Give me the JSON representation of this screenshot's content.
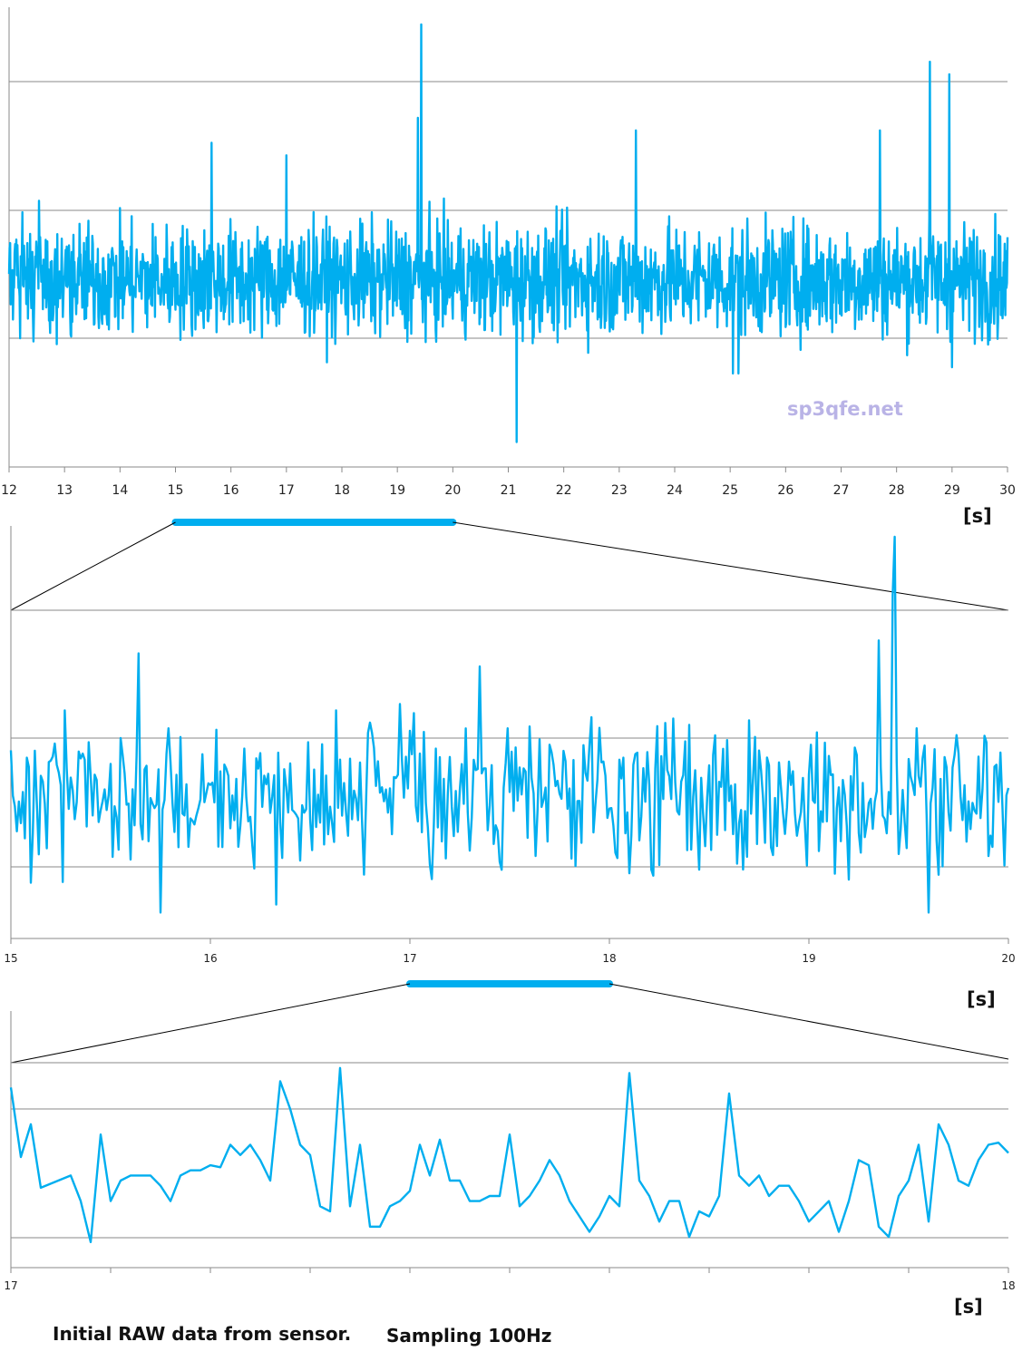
{
  "colors": {
    "series": "#00aeef",
    "grid": "#8a8a8a",
    "axis": "#8a8a8a",
    "connector": "#000000"
  },
  "watermark": "sp3qfe.net",
  "caption": {
    "left": "Initial RAW data from sensor.",
    "right": "Sampling 100Hz"
  },
  "chart_data": [
    {
      "type": "line",
      "xlabel": "[s]",
      "xlim": [
        12,
        30
      ],
      "ticks": [
        "12",
        "13",
        "14",
        "15",
        "16",
        "17",
        "18",
        "19",
        "20",
        "21",
        "22",
        "23",
        "24",
        "25",
        "26",
        "27",
        "28",
        "29",
        "30"
      ],
      "ylim": [
        -2,
        1.6
      ],
      "grid": true,
      "zoom_highlight": [
        15,
        20
      ],
      "sampling_hz": 100,
      "points_note": "dense noise trace, ~mean -0.5, range approx -1.8 to 1.55",
      "spikes": [
        [
          19.43,
          1.55
        ],
        [
          19.37,
          0.8
        ],
        [
          15.65,
          0.6
        ],
        [
          21.15,
          -1.8
        ],
        [
          25.15,
          -1.25
        ],
        [
          28.6,
          1.25
        ],
        [
          28.95,
          1.15
        ],
        [
          29.0,
          -1.2
        ],
        [
          27.7,
          0.7
        ],
        [
          23.3,
          0.7
        ],
        [
          17.0,
          0.5
        ],
        [
          25.05,
          -1.25
        ]
      ]
    },
    {
      "type": "line",
      "xlabel": "[s]",
      "xlim": [
        15,
        20
      ],
      "ticks": [
        "15",
        "16",
        "17",
        "18",
        "19",
        "20"
      ],
      "ylim": [
        -1.55,
        1.55
      ],
      "grid": true,
      "zoom_highlight": [
        17,
        18
      ],
      "spikes": [
        [
          19.43,
          1.55
        ],
        [
          19.42,
          1.1
        ],
        [
          19.35,
          0.75
        ],
        [
          15.64,
          0.65
        ],
        [
          15.75,
          -1.35
        ],
        [
          17.35,
          0.55
        ],
        [
          19.6,
          -1.35
        ]
      ]
    },
    {
      "type": "line",
      "xlabel": "[s]",
      "xlim": [
        17,
        18
      ],
      "ticks": [
        "17",
        "18"
      ],
      "minor_ticks": 10,
      "ylim": [
        -1.2,
        1.2
      ],
      "grid": true,
      "x": [
        17.0,
        17.01,
        17.02,
        17.03,
        17.04,
        17.05,
        17.06,
        17.07,
        17.08,
        17.09,
        17.1,
        17.11,
        17.12,
        17.13,
        17.14,
        17.15,
        17.16,
        17.17,
        17.18,
        17.19,
        17.2,
        17.21,
        17.22,
        17.23,
        17.24,
        17.25,
        17.26,
        17.27,
        17.28,
        17.29,
        17.3,
        17.31,
        17.32,
        17.33,
        17.34,
        17.35,
        17.36,
        17.37,
        17.38,
        17.39,
        17.4,
        17.41,
        17.42,
        17.43,
        17.44,
        17.45,
        17.46,
        17.47,
        17.48,
        17.49,
        17.5,
        17.51,
        17.52,
        17.53,
        17.54,
        17.55,
        17.56,
        17.57,
        17.58,
        17.59,
        17.6,
        17.61,
        17.62,
        17.63,
        17.64,
        17.65,
        17.66,
        17.67,
        17.68,
        17.69,
        17.7,
        17.71,
        17.72,
        17.73,
        17.74,
        17.75,
        17.76,
        17.77,
        17.78,
        17.79,
        17.8,
        17.81,
        17.82,
        17.83,
        17.84,
        17.85,
        17.86,
        17.87,
        17.88,
        17.89,
        17.9,
        17.91,
        17.92,
        17.93,
        17.94,
        17.95,
        17.96,
        17.97,
        17.98,
        17.99,
        18.0
      ],
      "y": [
        0.56,
        -0.12,
        0.2,
        -0.42,
        -0.38,
        -0.34,
        -0.3,
        -0.55,
        -0.95,
        0.1,
        -0.55,
        -0.35,
        -0.3,
        -0.3,
        -0.3,
        -0.4,
        -0.55,
        -0.3,
        -0.25,
        -0.25,
        -0.2,
        -0.22,
        0.0,
        -0.1,
        0.0,
        -0.15,
        -0.35,
        0.62,
        0.35,
        0.0,
        -0.1,
        -0.6,
        -0.65,
        0.75,
        -0.6,
        0.0,
        -0.8,
        -0.8,
        -0.6,
        -0.55,
        -0.45,
        0.0,
        -0.3,
        0.05,
        -0.35,
        -0.35,
        -0.55,
        -0.55,
        -0.5,
        -0.5,
        0.1,
        -0.6,
        -0.5,
        -0.35,
        -0.15,
        -0.3,
        -0.55,
        -0.7,
        -0.85,
        -0.7,
        -0.5,
        -0.6,
        0.7,
        -0.35,
        -0.5,
        -0.75,
        -0.55,
        -0.55,
        -0.9,
        -0.65,
        -0.7,
        -0.5,
        0.5,
        -0.3,
        -0.4,
        -0.3,
        -0.5,
        -0.4,
        -0.4,
        -0.55,
        -0.75,
        -0.65,
        -0.55,
        -0.85,
        -0.55,
        -0.15,
        -0.2,
        -0.8,
        -0.9,
        -0.5,
        -0.35,
        0.0,
        -0.75,
        0.2,
        0.0,
        -0.35,
        -0.4,
        -0.15,
        0.0,
        0.02,
        -0.08
      ]
    }
  ]
}
